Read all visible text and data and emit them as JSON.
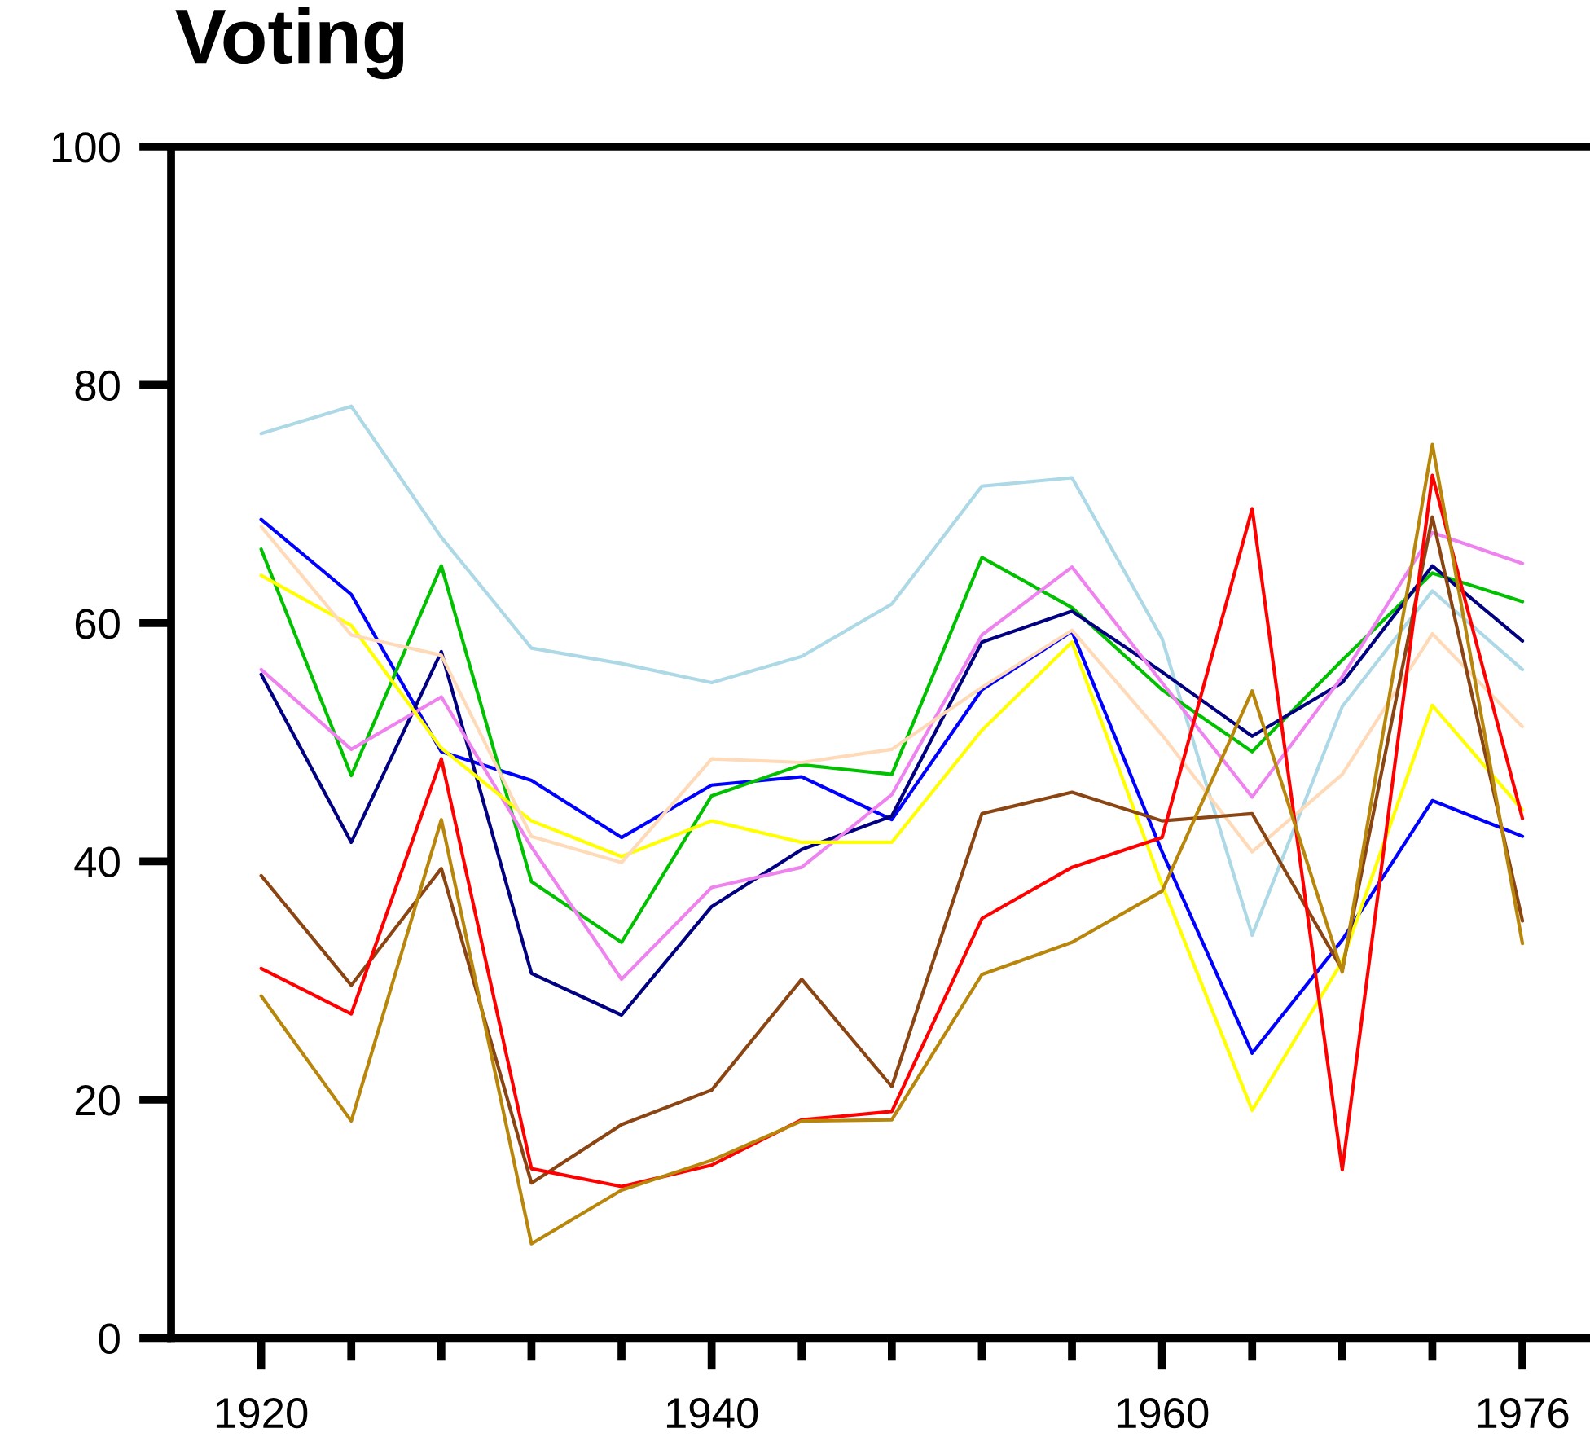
{
  "chart_data": {
    "type": "line",
    "title": "Voting",
    "x": [
      1920,
      1924,
      1928,
      1932,
      1936,
      1940,
      1944,
      1948,
      1952,
      1956,
      1960,
      1964,
      1968,
      1972,
      1976
    ],
    "xlim": [
      1916,
      1979
    ],
    "xticks": [
      1920,
      {
        "value": 1924,
        "label": null
      },
      {
        "value": 1928,
        "label": null
      },
      {
        "value": 1932,
        "label": null
      },
      {
        "value": 1936,
        "label": null
      },
      1940,
      {
        "value": 1944,
        "label": null
      },
      {
        "value": 1948,
        "label": null
      },
      {
        "value": 1952,
        "label": null
      },
      {
        "value": 1956,
        "label": null
      },
      1960,
      {
        "value": 1964,
        "label": null
      },
      {
        "value": 1968,
        "label": null
      },
      {
        "value": 1972,
        "label": null
      },
      1976
    ],
    "ylim": [
      0,
      100
    ],
    "yticks": [
      0,
      20,
      40,
      60,
      80,
      100
    ],
    "grid": false,
    "line_style": "solid",
    "marker": "none",
    "series": [
      {
        "color": "#add8e6",
        "values": [
          75.9,
          78.2,
          67.2,
          57.9,
          56.6,
          55,
          57.2,
          61.6,
          71.5,
          72.2,
          58.7,
          33.8,
          53,
          62.7,
          56.1
        ]
      },
      {
        "color": "#0000ff",
        "values": [
          68.7,
          62.4,
          49.2,
          46.8,
          42,
          46.4,
          47.1,
          43.5,
          54.4,
          59.3,
          40.8,
          23.9,
          33.4,
          45.1,
          42.1
        ]
      },
      {
        "color": "#00c000",
        "values": [
          66.2,
          47.2,
          64.8,
          38.3,
          33.2,
          45.5,
          48.1,
          47.3,
          65.5,
          61.3,
          54.4,
          49.2,
          56.9,
          64.2,
          61.8
        ]
      },
      {
        "color": "#000080",
        "values": [
          55.7,
          41.6,
          57.6,
          30.6,
          27.1,
          36.2,
          41,
          43.8,
          58.4,
          61,
          55.9,
          50.5,
          55,
          64.8,
          58.5
        ]
      },
      {
        "color": "#ee82ee",
        "values": [
          56.1,
          49.4,
          53.8,
          41.2,
          30.1,
          37.8,
          39.5,
          45.6,
          59,
          64.7,
          55,
          45.4,
          55.5,
          67.6,
          65
        ]
      },
      {
        "color": "#ffff00",
        "values": [
          64,
          59.8,
          49.5,
          43.4,
          40.4,
          43.4,
          41.6,
          41.6,
          51,
          58.4,
          38,
          19.1,
          31.6,
          53.1,
          44.3
        ]
      },
      {
        "color": "#ffdab9",
        "values": [
          68.1,
          59,
          57.3,
          42.1,
          39.9,
          48.6,
          48.3,
          49.4,
          54.6,
          59.4,
          50.6,
          40.8,
          47.3,
          59.1,
          51.3
        ]
      },
      {
        "color": "#8b4513",
        "values": [
          38.8,
          29.6,
          39.4,
          13,
          17.9,
          20.8,
          30.1,
          21.1,
          44,
          45.8,
          43.4,
          44,
          30.9,
          68.9,
          35
        ]
      },
      {
        "color": "#ff0000",
        "values": [
          31,
          27.2,
          48.6,
          14.2,
          12.7,
          14.5,
          18.3,
          19,
          35.2,
          39.5,
          42,
          69.6,
          14.1,
          72.4,
          43.6
        ]
      },
      {
        "color": "#b8860b",
        "values": [
          28.7,
          18.2,
          43.5,
          7.9,
          12.4,
          14.9,
          18.2,
          18.3,
          30.5,
          33.2,
          37.5,
          54.3,
          30.7,
          75,
          33.1
        ]
      }
    ]
  }
}
